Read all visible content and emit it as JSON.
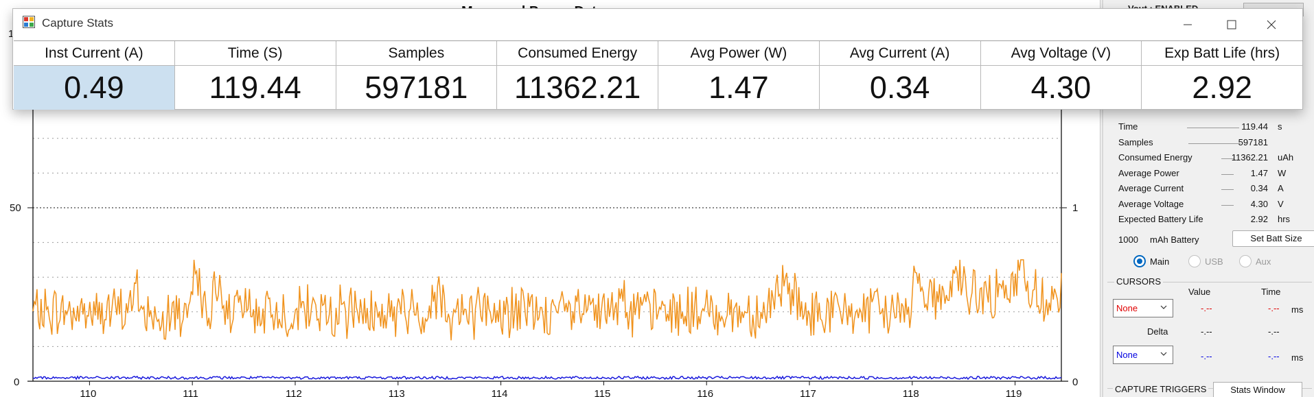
{
  "plot": {
    "title": "Measured Power Data",
    "left_axis_top": "1",
    "left_axis_mid": "50",
    "left_axis_zero": "0",
    "right_axis_mid": "1",
    "right_axis_zero": "0",
    "x_ticks": [
      "110",
      "111",
      "112",
      "113",
      "114",
      "115",
      "116",
      "117",
      "118",
      "119"
    ]
  },
  "chart_data": {
    "type": "line",
    "x_range": [
      109.45,
      119.45
    ],
    "ylim": [
      0,
      100
    ],
    "y2lim": [
      0,
      2
    ],
    "series": [
      {
        "color": "#f0921c",
        "axis": "left",
        "approx_baseline": 20,
        "approx_range": [
          10,
          35
        ]
      },
      {
        "color": "#1a1adc",
        "axis": "left",
        "approx_baseline": 1,
        "approx_range": [
          0,
          2
        ]
      }
    ],
    "grid": "dotted horizontal"
  },
  "right_panel": {
    "vout_label": "Vout : ENABLED",
    "stats": [
      {
        "label": "Time",
        "value": "119.44",
        "unit": "s"
      },
      {
        "label": "Samples",
        "value": "597181",
        "unit": ""
      },
      {
        "label": "Consumed Energy",
        "value": "11362.21",
        "unit": "uAh"
      },
      {
        "label": "Average Power",
        "value": "1.47",
        "unit": "W"
      },
      {
        "label": "Average Current",
        "value": "0.34",
        "unit": "A"
      },
      {
        "label": "Average Voltage",
        "value": "4.30",
        "unit": "V"
      },
      {
        "label": "Expected Battery Life",
        "value": "2.92",
        "unit": "hrs"
      }
    ],
    "battery_size": "1000",
    "battery_label": "mAh Battery",
    "set_batt_button": "Set Batt Size",
    "radios": [
      {
        "label": "Main",
        "selected": true,
        "enabled": true
      },
      {
        "label": "USB",
        "selected": false,
        "enabled": false
      },
      {
        "label": "Aux",
        "selected": false,
        "enabled": false
      }
    ],
    "cursors": {
      "title": "CURSORS",
      "value_header": "Value",
      "time_header": "Time",
      "delta_label": "Delta",
      "combo1": "None",
      "combo2": "None",
      "row1_value": "-.--",
      "row1_time": "-.--",
      "row1_unit": "ms",
      "delta_value": "-.--",
      "delta_time": "-.--",
      "row2_value": "-.--",
      "row2_time": "-.--",
      "row2_unit": "ms"
    },
    "capture_triggers_title": "CAPTURE TRIGGERS",
    "stats_window_button": "Stats Window"
  },
  "stats_window": {
    "title": "Capture Stats",
    "columns": [
      {
        "header": "Inst Current (A)",
        "value": "0.49",
        "selected": true
      },
      {
        "header": "Time (S)",
        "value": "119.44",
        "selected": false
      },
      {
        "header": "Samples",
        "value": "597181",
        "selected": false
      },
      {
        "header": "Consumed Energy",
        "value": "11362.21",
        "selected": false
      },
      {
        "header": "Avg Power (W)",
        "value": "1.47",
        "selected": false
      },
      {
        "header": "Avg Current (A)",
        "value": "0.34",
        "selected": false
      },
      {
        "header": "Avg Voltage (V)",
        "value": "4.30",
        "selected": false
      },
      {
        "header": "Exp Batt Life (hrs)",
        "value": "2.92",
        "selected": false
      }
    ]
  },
  "colors": {
    "orange_series": "#f0921c",
    "blue_series": "#1a1adc",
    "selected_cell": "#cce0f0",
    "cursor_red": "#e00000",
    "cursor_blue": "#0000e0"
  }
}
